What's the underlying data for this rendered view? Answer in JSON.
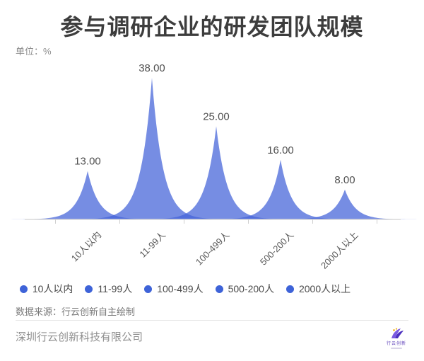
{
  "header": {
    "title": "参与调研企业的研发团队规模",
    "unit_label": "单位：%"
  },
  "chart_data": {
    "type": "area",
    "style": "sharp-peaked mountain/ridge area shapes, one semi-transparent peak per category, no gridlines",
    "categories": [
      "10人以内",
      "11-99人",
      "100-499人",
      "500-200人",
      "2000人以上"
    ],
    "values": [
      13,
      38,
      25,
      16,
      8
    ],
    "value_labels": [
      "13.00",
      "38.00",
      "25.00",
      "16.00",
      "8.00"
    ],
    "unit": "%",
    "ylim": [
      0,
      40
    ],
    "grid": false,
    "series_color": "#4363d8",
    "series_fill_opacity": 0.73,
    "axis_line_color": "#d8d8d8",
    "tick_color": "#cfcfcf",
    "x_label_rotation_deg": 45,
    "legend": {
      "position": "bottom-center",
      "marker": "circle",
      "marker_color": "#3e63d8",
      "items": [
        "10人以内",
        "11-99人",
        "100-499人",
        "500-200人",
        "2000人以上"
      ]
    }
  },
  "footer": {
    "source": "数据来源：行云创新自主绘制",
    "company": "深圳行云创新科技有限公司",
    "logo_text": "行云创新",
    "logo_colors": {
      "purple_dark": "#4b2fbf",
      "purple_light": "#7a5ae0",
      "yellow": "#f0b429"
    }
  }
}
